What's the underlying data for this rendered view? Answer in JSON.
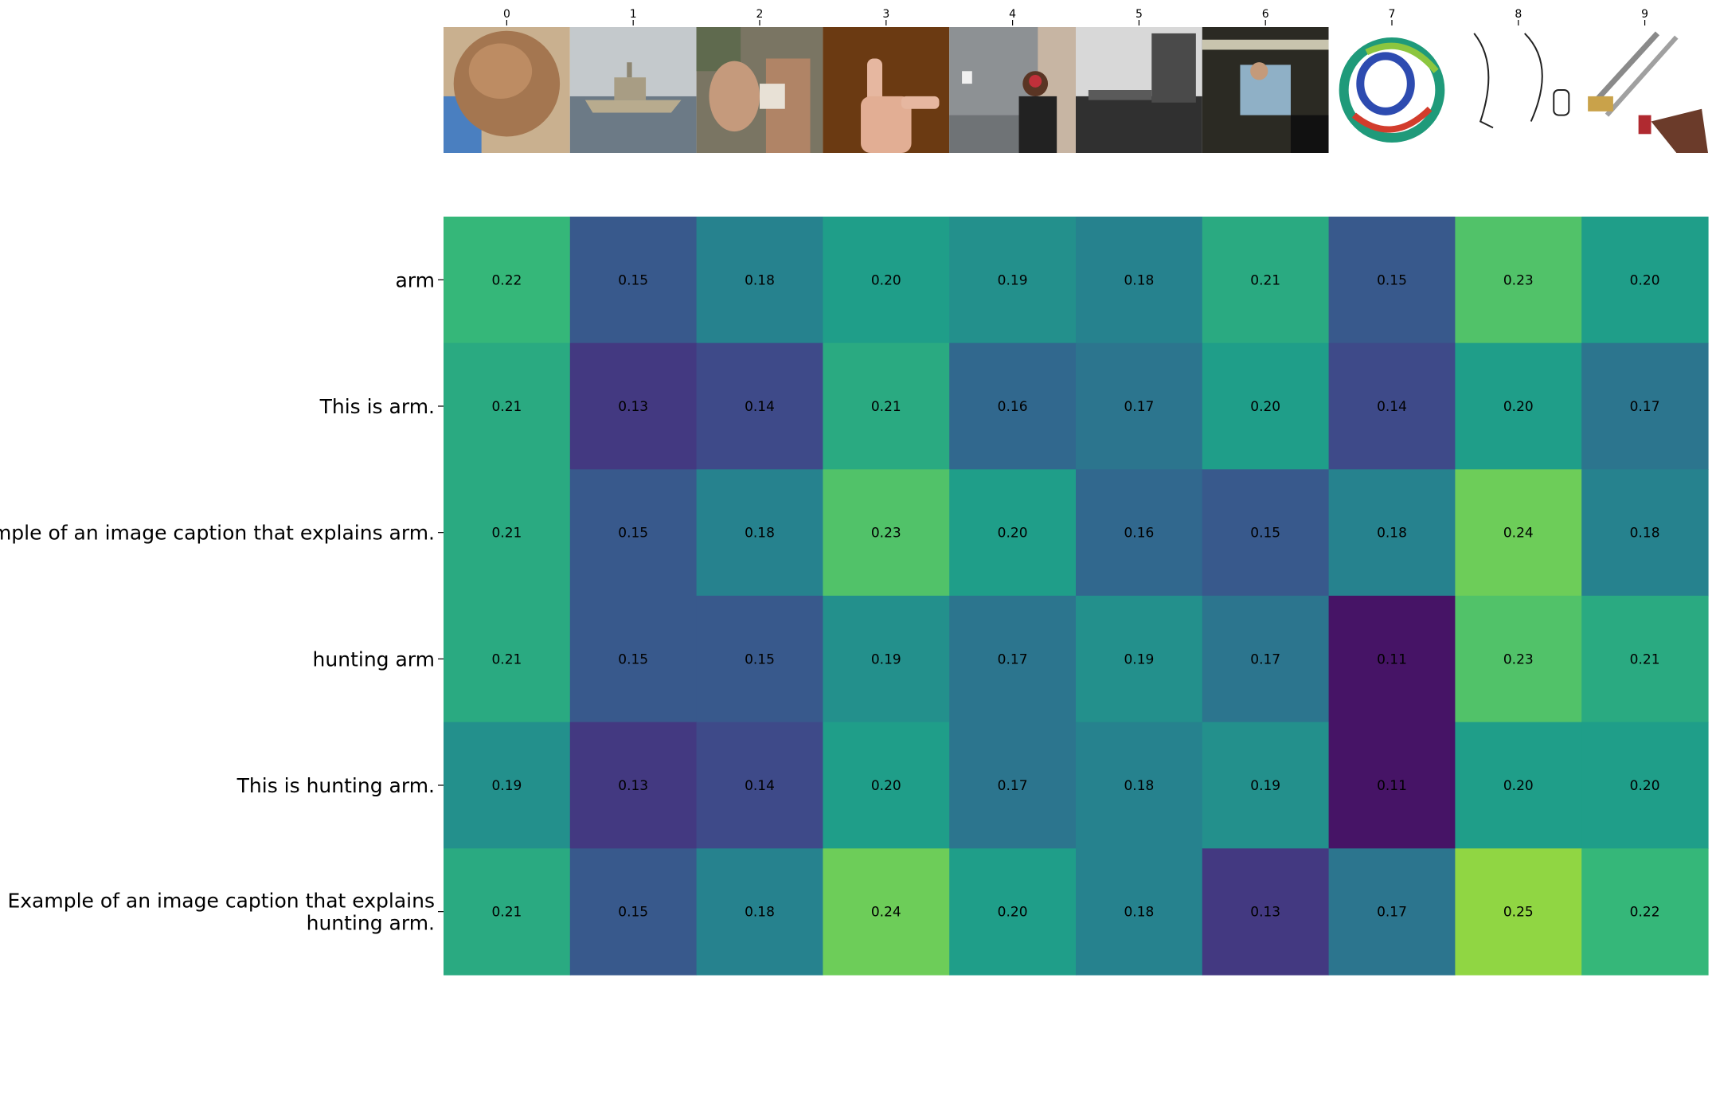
{
  "chart_data": {
    "type": "heatmap",
    "title": "",
    "xlabel": "",
    "ylabel": "",
    "x_tick_labels": [
      "0",
      "1",
      "2",
      "3",
      "4",
      "5",
      "6",
      "7",
      "8",
      "9"
    ],
    "image_thumbnails": [
      "bare shoulder/arm close-up",
      "grey naval warship at sea",
      "soldier receiving injection in upper arm",
      "hand making sign-language gesture on brown background",
      "woman with ear protection shooting pistol at range",
      "black-and-white photo of submarine conning tower",
      "performer on stage with arms raised",
      "protein ribbon structure",
      "patent line drawing of arms",
      "antique sword and flintlock pistol"
    ],
    "y_tick_labels": [
      "arm",
      "This is arm.",
      "Example of an image caption that explains arm.",
      "hunting arm",
      "This is hunting arm.",
      "Example of an image caption that explains hunting arm."
    ],
    "values": [
      [
        0.22,
        0.15,
        0.18,
        0.2,
        0.19,
        0.18,
        0.21,
        0.15,
        0.23,
        0.2
      ],
      [
        0.21,
        0.13,
        0.14,
        0.21,
        0.16,
        0.17,
        0.2,
        0.14,
        0.2,
        0.17
      ],
      [
        0.21,
        0.15,
        0.18,
        0.23,
        0.2,
        0.16,
        0.15,
        0.18,
        0.24,
        0.18
      ],
      [
        0.21,
        0.15,
        0.15,
        0.19,
        0.17,
        0.19,
        0.17,
        0.11,
        0.23,
        0.21
      ],
      [
        0.19,
        0.13,
        0.14,
        0.2,
        0.17,
        0.18,
        0.19,
        0.11,
        0.2,
        0.2
      ],
      [
        0.21,
        0.15,
        0.18,
        0.24,
        0.2,
        0.18,
        0.13,
        0.17,
        0.25,
        0.22
      ]
    ],
    "value_format": "2 decimals",
    "colormap": "viridis",
    "color_range": [
      0.1,
      0.28
    ],
    "grid": false,
    "legend": "none"
  }
}
